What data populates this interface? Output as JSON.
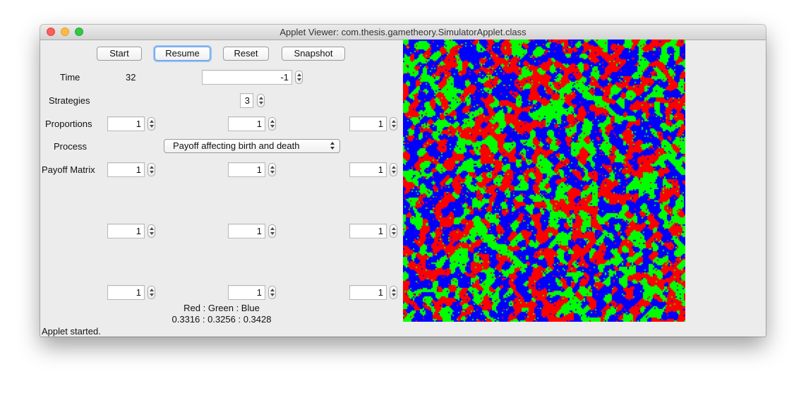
{
  "window": {
    "title": "Applet Viewer: com.thesis.gametheory.SimulatorApplet.class"
  },
  "toolbar": {
    "start_label": "Start",
    "resume_label": "Resume",
    "reset_label": "Reset",
    "snapshot_label": "Snapshot"
  },
  "time": {
    "label": "Time",
    "value": "32",
    "limit": "-1"
  },
  "strategies": {
    "label": "Strategies",
    "value": "3"
  },
  "proportions": {
    "label": "Proportions",
    "values": [
      "1",
      "1",
      "1"
    ]
  },
  "process": {
    "label": "Process",
    "selected": "Payoff affecting birth and death"
  },
  "payoff": {
    "label": "Payoff Matrix",
    "rows": [
      [
        "1",
        "1",
        "1"
      ],
      [
        "1",
        "1",
        "1"
      ],
      [
        "1",
        "1",
        "1"
      ]
    ]
  },
  "ratio": {
    "label": "Red : Green : Blue",
    "values": "0.3316 : 0.3256 : 0.3428"
  },
  "grid_colors": {
    "red": "#ff0000",
    "green": "#00ff00",
    "blue": "#0000ff"
  },
  "status": "Applet started."
}
